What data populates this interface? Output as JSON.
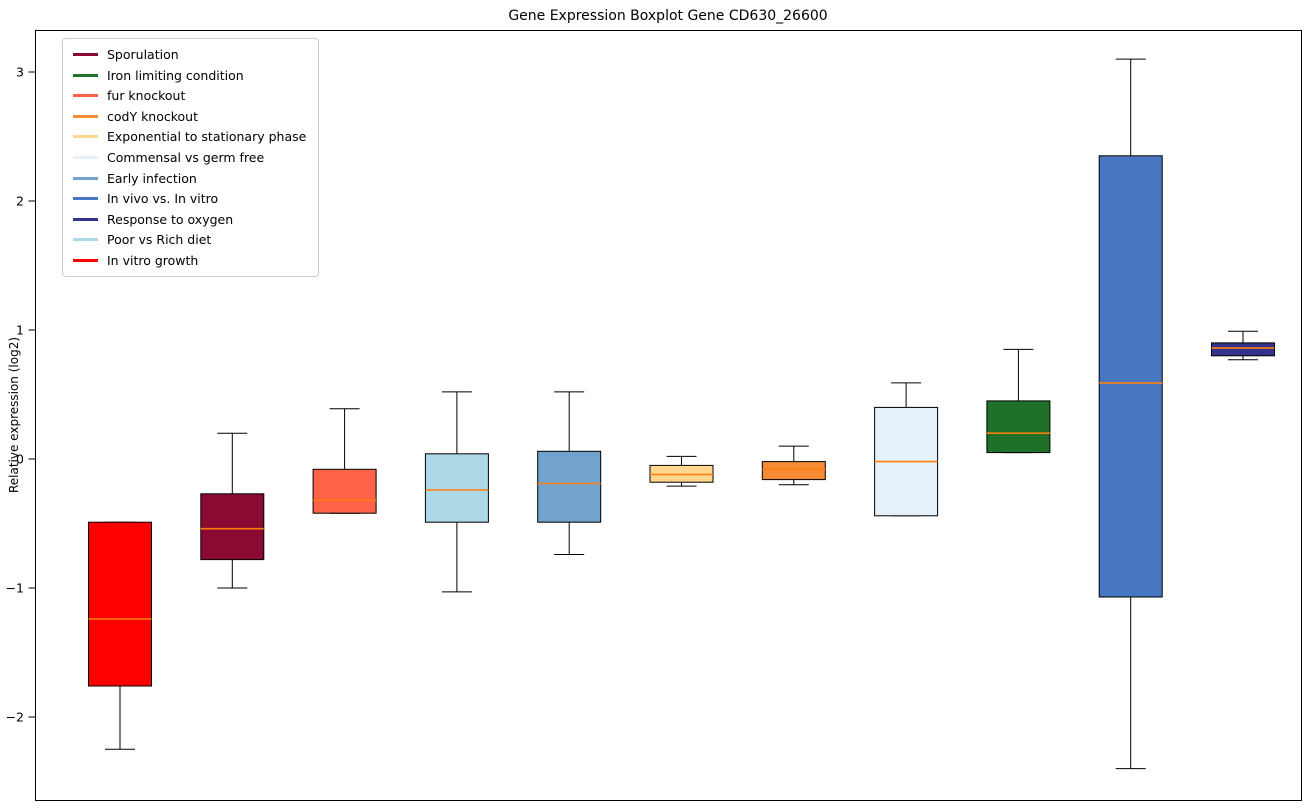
{
  "title": "Gene Expression Boxplot Gene CD630_26600",
  "ylabel": "Relative expression (log2)",
  "legend": [
    {
      "label": "Sporulation",
      "color": "#8B0A32"
    },
    {
      "label": "Iron limiting condition",
      "color": "#1F7029"
    },
    {
      "label": "fur knockout",
      "color": "#FF6347"
    },
    {
      "label": "codY knockout",
      "color": "#F68B33"
    },
    {
      "label": "Exponential to stationary phase",
      "color": "#FFD78E"
    },
    {
      "label": "Commensal vs germ free",
      "color": "#E4F1F8"
    },
    {
      "label": "Early infection",
      "color": "#72A3CC"
    },
    {
      "label": "In vivo vs. In vitro",
      "color": "#4777C2"
    },
    {
      "label": "Response to oxygen",
      "color": "#31338C"
    },
    {
      "label": "Poor vs Rich diet",
      "color": "#ADD8E6"
    },
    {
      "label": "In vitro growth",
      "color": "#FF0000"
    }
  ],
  "chart_data": {
    "type": "boxplot",
    "title": "Gene Expression Boxplot Gene CD630_26600",
    "ylabel": "Relative expression (log2)",
    "xlabel": "",
    "ylim": [
      -2.64,
      3.33
    ],
    "yticks": [
      3,
      2,
      1,
      0,
      -1,
      -2
    ],
    "grid": false,
    "legend_position": "upper left",
    "median_color": "#FF7F0E",
    "box_edge_color": "#000000",
    "series": [
      {
        "name": "In vitro growth",
        "color": "#FF0000",
        "whislo": -2.25,
        "q1": -1.76,
        "med": -1.24,
        "q3": -0.49,
        "whishi": -0.49
      },
      {
        "name": "Sporulation",
        "color": "#8B0A32",
        "whislo": -1.0,
        "q1": -0.78,
        "med": -0.54,
        "q3": -0.27,
        "whishi": 0.2
      },
      {
        "name": "fur knockout",
        "color": "#FF6347",
        "whislo": -0.42,
        "q1": -0.42,
        "med": -0.32,
        "q3": -0.08,
        "whishi": 0.39
      },
      {
        "name": "Poor vs Rich diet",
        "color": "#ADD8E6",
        "whislo": -1.03,
        "q1": -0.49,
        "med": -0.24,
        "q3": 0.04,
        "whishi": 0.52
      },
      {
        "name": "Early infection",
        "color": "#72A3CC",
        "whislo": -0.74,
        "q1": -0.49,
        "med": -0.19,
        "q3": 0.06,
        "whishi": 0.52
      },
      {
        "name": "Exponential to stationary phase",
        "color": "#FFD78E",
        "whislo": -0.21,
        "q1": -0.18,
        "med": -0.12,
        "q3": -0.05,
        "whishi": 0.02
      },
      {
        "name": "codY knockout",
        "color": "#F68B33",
        "whislo": -0.2,
        "q1": -0.16,
        "med": -0.08,
        "q3": -0.02,
        "whishi": 0.1
      },
      {
        "name": "Commensal vs germ free",
        "color": "#E4F1F8",
        "whislo": -0.44,
        "q1": -0.44,
        "med": -0.02,
        "q3": 0.4,
        "whishi": 0.59
      },
      {
        "name": "Iron limiting condition",
        "color": "#1F7029",
        "whislo": 0.05,
        "q1": 0.05,
        "med": 0.2,
        "q3": 0.45,
        "whishi": 0.85
      },
      {
        "name": "In vivo vs. In vitro",
        "color": "#4777C2",
        "whislo": -2.4,
        "q1": -1.07,
        "med": 0.59,
        "q3": 2.35,
        "whishi": 3.1
      },
      {
        "name": "Response to oxygen",
        "color": "#31338C",
        "whislo": 0.77,
        "q1": 0.8,
        "med": 0.86,
        "q3": 0.9,
        "whishi": 0.99
      }
    ]
  }
}
